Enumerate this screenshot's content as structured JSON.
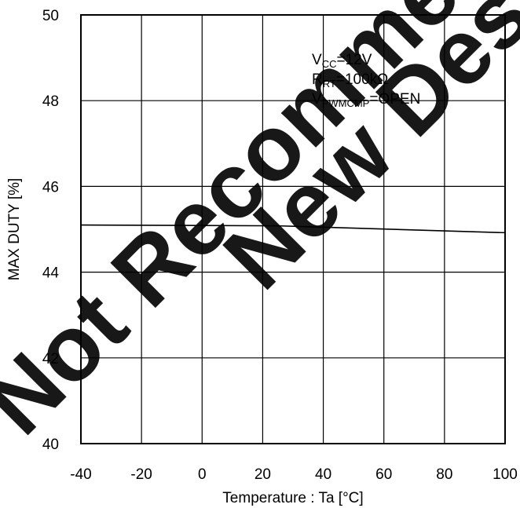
{
  "chart_data": {
    "type": "line",
    "title": "",
    "xlabel": "Temperature : Ta [°C]",
    "ylabel": "MAX DUTY [%]",
    "xlim": [
      -40,
      100
    ],
    "ylim": [
      40,
      50
    ],
    "x_ticks": [
      "-40",
      "-20",
      "0",
      "20",
      "40",
      "60",
      "80",
      "100"
    ],
    "y_ticks": [
      "40",
      "42",
      "44",
      "46",
      "48",
      "50"
    ],
    "grid": true,
    "series": [
      {
        "x": [
          -40,
          25,
          100
        ],
        "y": [
          45.1,
          45.08,
          44.92
        ]
      }
    ],
    "annotations": [
      {
        "main": "V",
        "sub": "CC",
        "rest": "=12V"
      },
      {
        "main": "R",
        "sub": "RT",
        "rest": "=100kΩ"
      },
      {
        "main": "V",
        "sub": "PWMCMP",
        "rest": "=OPEN"
      }
    ],
    "watermark": [
      "Not Recommended for",
      "New Designs"
    ]
  }
}
